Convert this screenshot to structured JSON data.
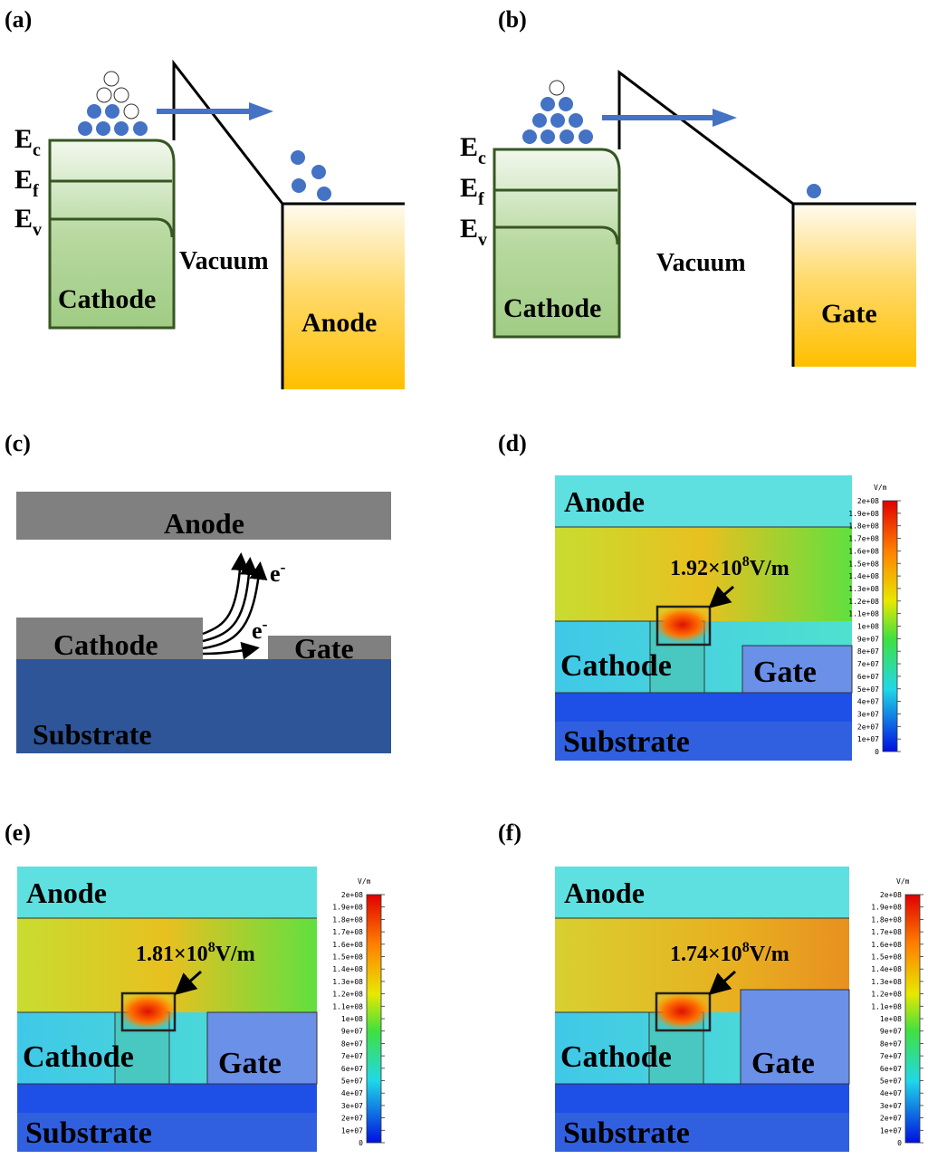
{
  "panels": {
    "a": {
      "label": "(a)",
      "levels": [
        {
          "main": "E",
          "sub": "c"
        },
        {
          "main": "E",
          "sub": "f"
        },
        {
          "main": "E",
          "sub": "v"
        }
      ],
      "vacuum": "Vacuum",
      "cathode": "Cathode",
      "collector": "Anode"
    },
    "b": {
      "label": "(b)",
      "levels": [
        {
          "main": "E",
          "sub": "c"
        },
        {
          "main": "E",
          "sub": "f"
        },
        {
          "main": "E",
          "sub": "v"
        }
      ],
      "vacuum": "Vacuum",
      "cathode": "Cathode",
      "collector": "Gate"
    },
    "c": {
      "label": "(c)",
      "anode": "Anode",
      "cathode": "Cathode",
      "gate": "Gate",
      "substrate": "Substrate",
      "electrons": [
        {
          "main": "e",
          "sup": "-"
        },
        {
          "main": "e",
          "sup": "-"
        }
      ]
    },
    "d": {
      "label": "(d)",
      "anode": "Anode",
      "cathode": "Cathode",
      "gate": "Gate",
      "substrate": "Substrate",
      "field": {
        "mantissa": "1.92×10",
        "exponent": "8",
        "unit": "V/m"
      },
      "colorbar": {
        "unit": "V/m",
        "ticks": [
          "2e+08",
          "1.9e+08",
          "1.8e+08",
          "1.7e+08",
          "1.6e+08",
          "1.5e+08",
          "1.4e+08",
          "1.3e+08",
          "1.2e+08",
          "1.1e+08",
          "1e+08",
          "9e+07",
          "8e+07",
          "7e+07",
          "6e+07",
          "5e+07",
          "4e+07",
          "3e+07",
          "2e+07",
          "1e+07",
          "0"
        ]
      }
    },
    "e": {
      "label": "(e)",
      "anode": "Anode",
      "cathode": "Cathode",
      "gate": "Gate",
      "substrate": "Substrate",
      "field": {
        "mantissa": "1.81×10",
        "exponent": "8",
        "unit": "V/m"
      },
      "colorbar": {
        "unit": "V/m",
        "ticks": [
          "2e+08",
          "1.9e+08",
          "1.8e+08",
          "1.7e+08",
          "1.6e+08",
          "1.5e+08",
          "1.4e+08",
          "1.3e+08",
          "1.2e+08",
          "1.1e+08",
          "1e+08",
          "9e+07",
          "8e+07",
          "7e+07",
          "6e+07",
          "5e+07",
          "4e+07",
          "3e+07",
          "2e+07",
          "1e+07",
          "0"
        ]
      }
    },
    "f": {
      "label": "(f)",
      "anode": "Anode",
      "cathode": "Cathode",
      "gate": "Gate",
      "substrate": "Substrate",
      "field": {
        "mantissa": "1.74×10",
        "exponent": "8",
        "unit": "V/m"
      },
      "colorbar": {
        "unit": "V/m",
        "ticks": [
          "2e+08",
          "1.9e+08",
          "1.8e+08",
          "1.7e+08",
          "1.6e+08",
          "1.5e+08",
          "1.4e+08",
          "1.3e+08",
          "1.2e+08",
          "1.1e+08",
          "1e+08",
          "9e+07",
          "8e+07",
          "7e+07",
          "6e+07",
          "5e+07",
          "4e+07",
          "3e+07",
          "2e+07",
          "1e+07",
          "0"
        ]
      }
    }
  }
}
